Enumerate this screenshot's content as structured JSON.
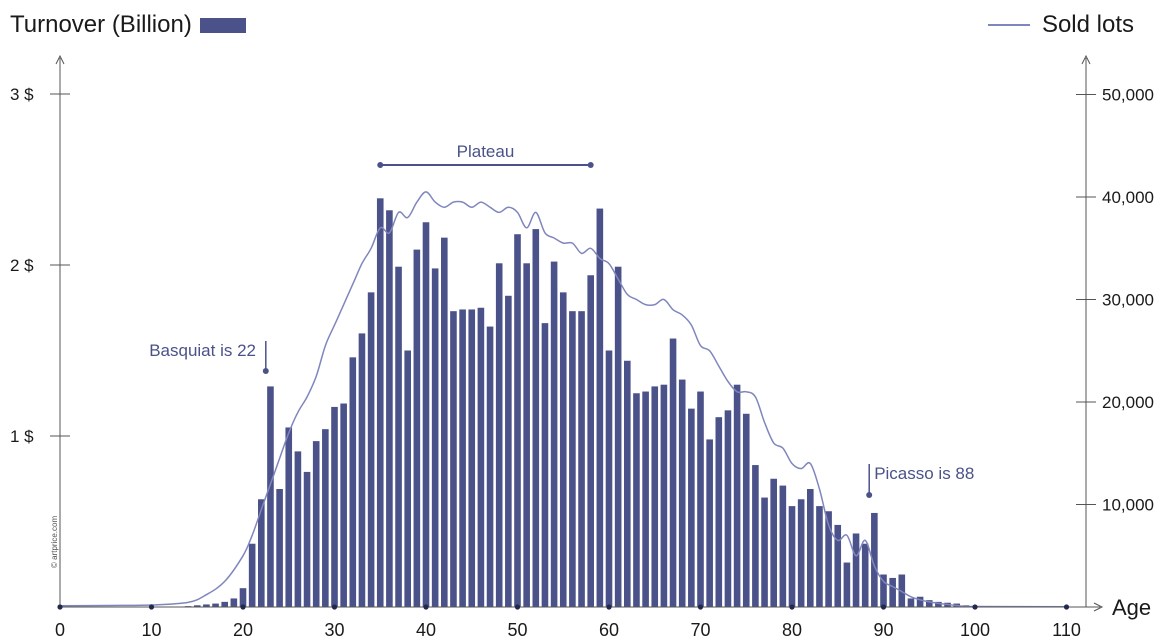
{
  "legend": {
    "left_label": "Turnover (Billion)",
    "right_label": "Sold lots"
  },
  "watermark": "© artprice.com",
  "colors": {
    "bar": "#4a5289",
    "line": "#7f86bd",
    "annotation": "#4a5289",
    "axis": "#555555"
  },
  "chart_data": {
    "type": "bar",
    "xlabel": "Age",
    "ylabel_left": "",
    "ylabel_right": "",
    "xlim": [
      0,
      110
    ],
    "ylim_left": [
      0,
      3
    ],
    "ylim_right": [
      0,
      50000
    ],
    "x_ticks": [
      0,
      10,
      20,
      30,
      40,
      50,
      60,
      70,
      80,
      90,
      100,
      110
    ],
    "left_ticks": [
      {
        "value": 1,
        "label": "1 $"
      },
      {
        "value": 2,
        "label": "2 $"
      },
      {
        "value": 3,
        "label": "3 $"
      }
    ],
    "right_ticks": [
      {
        "value": 10000,
        "label": "10,000"
      },
      {
        "value": 20000,
        "label": "20,000"
      },
      {
        "value": 30000,
        "label": "30,000"
      },
      {
        "value": 40000,
        "label": "40,000"
      },
      {
        "value": 50000,
        "label": "50,000"
      }
    ],
    "series": [
      {
        "name": "Turnover (Billion)",
        "type": "bar",
        "axis": "left",
        "x": [
          14,
          15,
          16,
          17,
          18,
          19,
          20,
          21,
          22,
          23,
          24,
          25,
          26,
          27,
          28,
          29,
          30,
          31,
          32,
          33,
          34,
          35,
          36,
          37,
          38,
          39,
          40,
          41,
          42,
          43,
          44,
          45,
          46,
          47,
          48,
          49,
          50,
          51,
          52,
          53,
          54,
          55,
          56,
          57,
          58,
          59,
          60,
          61,
          62,
          63,
          64,
          65,
          66,
          67,
          68,
          69,
          70,
          71,
          72,
          73,
          74,
          75,
          76,
          77,
          78,
          79,
          80,
          81,
          82,
          83,
          84,
          85,
          86,
          87,
          88,
          89,
          90,
          91,
          92,
          93,
          94,
          95,
          96,
          97,
          98,
          99
        ],
        "values": [
          0.005,
          0.01,
          0.015,
          0.02,
          0.03,
          0.05,
          0.11,
          0.37,
          0.63,
          1.29,
          0.69,
          1.05,
          0.91,
          0.79,
          0.97,
          1.04,
          1.17,
          1.19,
          1.46,
          1.6,
          1.84,
          2.39,
          2.32,
          1.99,
          1.5,
          2.09,
          2.25,
          1.98,
          2.16,
          1.73,
          1.74,
          1.74,
          1.75,
          1.64,
          2.01,
          1.82,
          2.18,
          2.01,
          2.21,
          1.66,
          2.02,
          1.84,
          1.73,
          1.73,
          1.94,
          2.33,
          1.5,
          1.99,
          1.44,
          1.25,
          1.26,
          1.29,
          1.3,
          1.57,
          1.33,
          1.16,
          1.26,
          0.98,
          1.11,
          1.15,
          1.3,
          1.13,
          0.83,
          0.64,
          0.75,
          0.71,
          0.59,
          0.63,
          0.69,
          0.59,
          0.56,
          0.48,
          0.26,
          0.43,
          0.37,
          0.55,
          0.19,
          0.17,
          0.19,
          0.05,
          0.06,
          0.04,
          0.03,
          0.025,
          0.02,
          0.01
        ]
      },
      {
        "name": "Sold lots",
        "type": "line",
        "axis": "right",
        "x": [
          0,
          5,
          10,
          14,
          16,
          18,
          20,
          21,
          22,
          23,
          24,
          25,
          26,
          27,
          28,
          29,
          30,
          31,
          32,
          33,
          34,
          35,
          36,
          37,
          38,
          39,
          40,
          41,
          42,
          43,
          44,
          45,
          46,
          47,
          48,
          49,
          50,
          51,
          52,
          53,
          54,
          55,
          56,
          57,
          58,
          59,
          60,
          61,
          62,
          63,
          64,
          65,
          66,
          67,
          68,
          69,
          70,
          71,
          72,
          73,
          74,
          75,
          76,
          77,
          78,
          79,
          80,
          81,
          82,
          83,
          84,
          85,
          86,
          87,
          88,
          89,
          90,
          91,
          92,
          93,
          94,
          95,
          96,
          97,
          98,
          100,
          110
        ],
        "values": [
          120,
          150,
          200,
          450,
          1200,
          2500,
          5000,
          7000,
          9500,
          12000,
          14500,
          17000,
          19000,
          20500,
          22500,
          25500,
          27500,
          29500,
          31500,
          33500,
          35000,
          37000,
          36500,
          38500,
          38000,
          39500,
          40500,
          39500,
          39000,
          39500,
          39500,
          39000,
          39500,
          39000,
          38500,
          39000,
          38500,
          37000,
          38500,
          36500,
          36000,
          35500,
          35500,
          34500,
          35000,
          34000,
          33500,
          32000,
          30500,
          30000,
          29500,
          29500,
          30000,
          29000,
          28500,
          27500,
          25500,
          25000,
          23500,
          22000,
          21000,
          21000,
          20500,
          18000,
          16000,
          15500,
          14000,
          13500,
          14000,
          11500,
          8000,
          6500,
          7000,
          5000,
          6500,
          4000,
          2500,
          2000,
          1500,
          1000,
          700,
          500,
          350,
          250,
          150,
          50,
          20
        ]
      }
    ],
    "annotations": [
      {
        "label": "Plateau",
        "x_start": 35,
        "x_end": 58
      },
      {
        "label": "Basquiat is 22",
        "x": 22
      },
      {
        "label": "Picasso is 88",
        "x": 88
      }
    ]
  }
}
